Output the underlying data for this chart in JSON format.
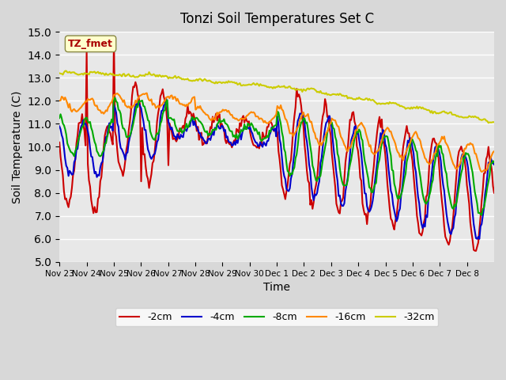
{
  "title": "Tonzi Soil Temperatures Set C",
  "xlabel": "Time",
  "ylabel": "Soil Temperature (C)",
  "ylim": [
    5.0,
    15.0
  ],
  "yticks": [
    5.0,
    6.0,
    7.0,
    8.0,
    9.0,
    10.0,
    11.0,
    12.0,
    13.0,
    14.0,
    15.0
  ],
  "xtick_labels": [
    "Nov 23",
    "Nov 24",
    "Nov 25",
    "Nov 26",
    "Nov 27",
    "Nov 28",
    "Nov 29",
    "Nov 30",
    "Dec 1",
    "Dec 2",
    "Dec 3",
    "Dec 4",
    "Dec 5",
    "Dec 6",
    "Dec 7",
    "Dec 8"
  ],
  "legend_labels": [
    "-2cm",
    "-4cm",
    "-8cm",
    "-16cm",
    "-32cm"
  ],
  "line_colors": [
    "#cc0000",
    "#0000cc",
    "#00aa00",
    "#ff8800",
    "#cccc00"
  ],
  "label_box_color": "#ffffcc",
  "label_box_text": "TZ_fmet",
  "label_box_text_color": "#aa0000"
}
